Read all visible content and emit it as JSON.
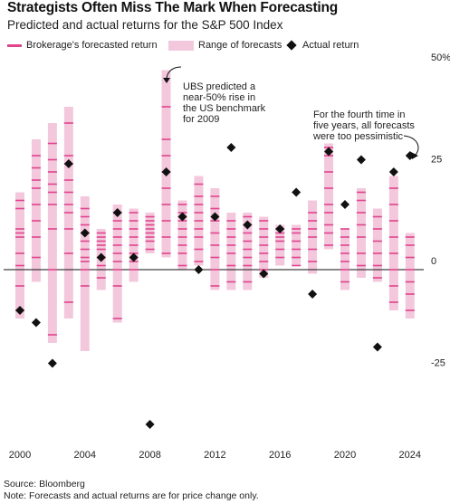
{
  "header": {
    "title": "Strategists Often Miss The Mark When Forecasting",
    "subtitle": "Predicted and actual returns for the S&P 500 Index"
  },
  "legend": {
    "forecast": "Brokerage's forecasted return",
    "range": "Range of forecasts",
    "actual": "Actual return"
  },
  "colors": {
    "forecast_line": "#e0448e",
    "range_fill": "#f3c8dc",
    "actual_marker": "#111111",
    "zero_line": "#111111"
  },
  "annotations": {
    "ubs": [
      "UBS predicted a",
      "near-50% rise in",
      "the US benchmark",
      "for 2009"
    ],
    "fourth": [
      "For the fourth time in",
      "five years, all forecasts",
      "were too pessimistic"
    ]
  },
  "footer": {
    "source": "Source: Bloomberg",
    "note": "Note: Forecasts and actual returns are for price change only."
  },
  "chart_data": {
    "type": "range-dot",
    "xlabel": "",
    "ylabel": "",
    "xticks": [
      "2000",
      "2004",
      "2008",
      "2012",
      "2016",
      "2020",
      "2024"
    ],
    "yticks": [
      {
        "value": 50,
        "label": "50%"
      },
      {
        "value": 25,
        "label": "25"
      },
      {
        "value": 0,
        "label": "0"
      },
      {
        "value": -25,
        "label": "-25"
      }
    ],
    "ylim": [
      -35,
      52
    ],
    "xlim": [
      1999.5,
      2024.5
    ],
    "years": [
      {
        "year": 2000,
        "range": [
          -12,
          19
        ],
        "forecasts": [
          -10,
          -4,
          1,
          4,
          8,
          9,
          10,
          15,
          17
        ],
        "actual": -10
      },
      {
        "year": 2001,
        "range": [
          -3,
          32
        ],
        "forecasts": [
          3,
          8,
          12,
          16,
          20,
          22,
          25,
          28
        ],
        "actual": -13
      },
      {
        "year": 2002,
        "range": [
          -18,
          36
        ],
        "forecasts": [
          -16,
          0,
          10,
          16,
          19,
          21,
          24,
          27,
          31
        ],
        "actual": -23
      },
      {
        "year": 2003,
        "range": [
          -12,
          40
        ],
        "forecasts": [
          -8,
          4,
          10,
          14,
          16,
          19,
          22,
          26,
          28,
          36
        ],
        "actual": 26
      },
      {
        "year": 2004,
        "range": [
          -20,
          18
        ],
        "forecasts": [
          -4,
          0,
          2,
          3,
          5,
          7,
          9,
          11,
          13,
          15
        ],
        "actual": 9
      },
      {
        "year": 2005,
        "range": [
          -5,
          10
        ],
        "forecasts": [
          -2,
          1,
          3,
          5,
          6,
          7,
          8,
          9
        ],
        "actual": 3
      },
      {
        "year": 2006,
        "range": [
          -13,
          16
        ],
        "forecasts": [
          -12,
          -4,
          0,
          2,
          4,
          6,
          8,
          10,
          12,
          14
        ],
        "actual": 14
      },
      {
        "year": 2007,
        "range": [
          -3,
          15
        ],
        "forecasts": [
          0,
          2,
          4,
          6,
          8,
          10,
          12,
          14
        ],
        "actual": 3
      },
      {
        "year": 2008,
        "range": [
          4,
          14
        ],
        "forecasts": [
          5,
          7,
          8,
          9,
          10,
          11,
          12,
          13
        ],
        "actual": -38
      },
      {
        "year": 2009,
        "range": [
          3,
          49
        ],
        "forecasts": [
          4,
          8,
          12,
          16,
          20,
          24,
          28,
          32,
          40
        ],
        "actual": 24
      },
      {
        "year": 2010,
        "range": [
          0,
          17
        ],
        "forecasts": [
          1,
          4,
          6,
          8,
          10,
          12,
          13,
          14,
          16
        ],
        "actual": 13
      },
      {
        "year": 2011,
        "range": [
          1,
          23
        ],
        "forecasts": [
          2,
          5,
          8,
          10,
          12,
          14,
          16,
          18,
          21
        ],
        "actual": 0
      },
      {
        "year": 2012,
        "range": [
          -5,
          20
        ],
        "forecasts": [
          -4,
          0,
          3,
          6,
          9,
          12,
          15,
          18
        ],
        "actual": 13
      },
      {
        "year": 2013,
        "range": [
          -5,
          14
        ],
        "forecasts": [
          -3,
          1,
          4,
          6,
          8,
          10,
          12
        ],
        "actual": 30
      },
      {
        "year": 2014,
        "range": [
          -5,
          14
        ],
        "forecasts": [
          -3,
          1,
          3,
          5,
          7,
          9,
          11,
          13
        ],
        "actual": 11
      },
      {
        "year": 2015,
        "range": [
          -2,
          13
        ],
        "forecasts": [
          0,
          2,
          4,
          6,
          8,
          10,
          12
        ],
        "actual": -1
      },
      {
        "year": 2016,
        "range": [
          1,
          11
        ],
        "forecasts": [
          3,
          5,
          7,
          8,
          9,
          10
        ],
        "actual": 10
      },
      {
        "year": 2017,
        "range": [
          1,
          11
        ],
        "forecasts": [
          1,
          3,
          5,
          7,
          9,
          10
        ],
        "actual": 19
      },
      {
        "year": 2018,
        "range": [
          -1,
          17
        ],
        "forecasts": [
          2,
          5,
          8,
          10,
          12,
          14
        ],
        "actual": -6
      },
      {
        "year": 2019,
        "range": [
          5,
          31
        ],
        "forecasts": [
          6,
          9,
          11,
          14,
          16,
          20,
          24,
          28,
          30
        ],
        "actual": 29
      },
      {
        "year": 2020,
        "range": [
          -5,
          10
        ],
        "forecasts": [
          -3,
          0,
          2,
          4,
          6,
          8,
          10
        ],
        "actual": 16
      },
      {
        "year": 2021,
        "range": [
          -2,
          20
        ],
        "forecasts": [
          1,
          4,
          8,
          11,
          14,
          17,
          19
        ],
        "actual": 27
      },
      {
        "year": 2022,
        "range": [
          -3,
          15
        ],
        "forecasts": [
          -2,
          1,
          4,
          7,
          10,
          13
        ],
        "actual": -19
      },
      {
        "year": 2023,
        "range": [
          -10,
          23
        ],
        "forecasts": [
          -8,
          -4,
          0,
          4,
          8,
          12,
          16,
          20
        ],
        "actual": 24
      },
      {
        "year": 2024,
        "range": [
          -12,
          9
        ],
        "forecasts": [
          -10,
          -6,
          -3,
          0,
          3,
          6,
          8
        ],
        "actual": 28
      }
    ]
  }
}
